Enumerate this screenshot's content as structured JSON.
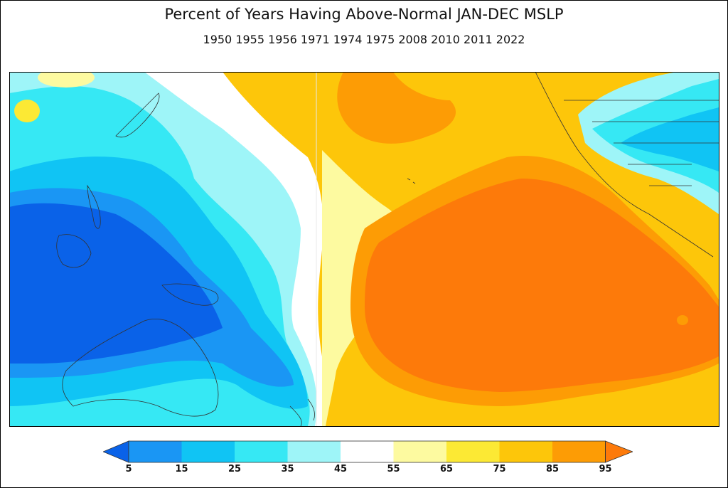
{
  "title": "Percent of Years Having Above-Normal JAN-DEC MSLP",
  "subtitle": "1950 1955 1956 1971 1974 1975 2008 2010 2011 2022",
  "colorbar": {
    "colors": [
      "#0a62e8",
      "#1a96f4",
      "#10c4f4",
      "#36e8f4",
      "#9ef5f8",
      "#ffffff",
      "#fdfaa0",
      "#fce934",
      "#fdc60a",
      "#fd9c05",
      "#fd7a0a"
    ],
    "labels": [
      "5",
      "15",
      "25",
      "35",
      "45",
      "55",
      "65",
      "75",
      "85",
      "95"
    ]
  }
}
